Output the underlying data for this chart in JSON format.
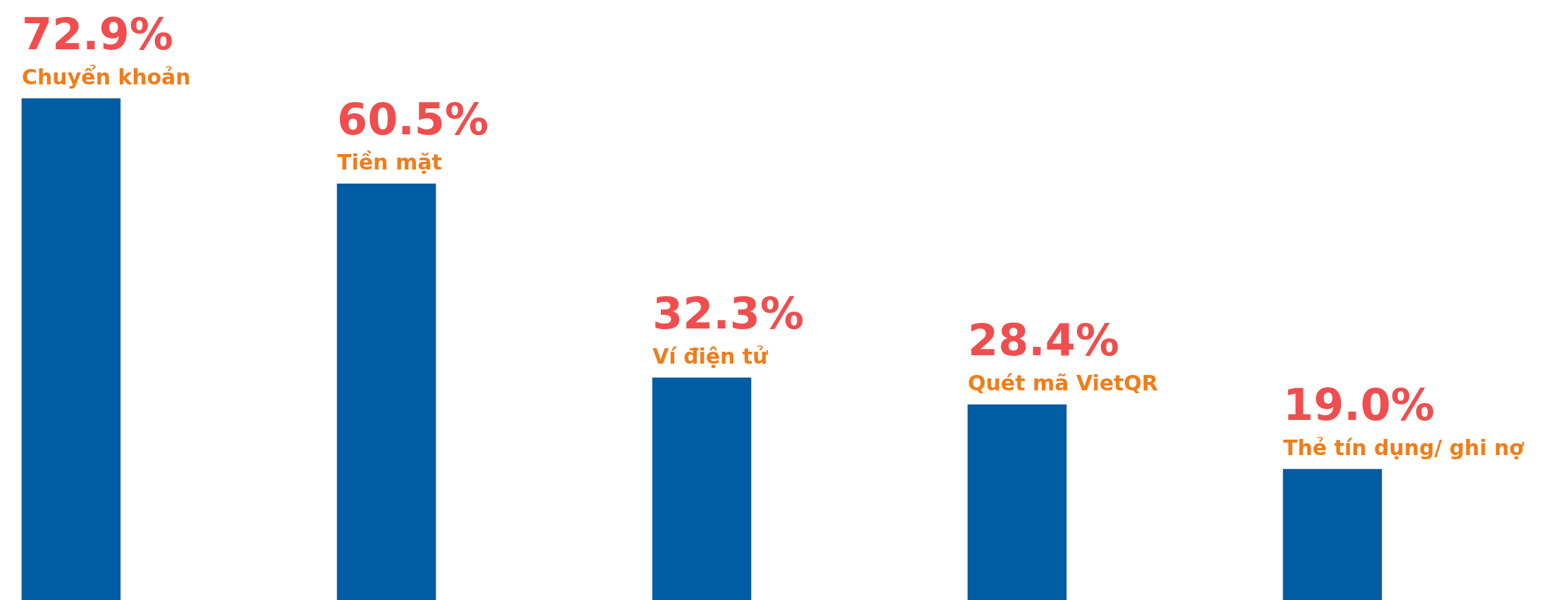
{
  "chart_data": {
    "type": "bar",
    "categories": [
      "Chuyển khoản",
      "Tiền mặt",
      "Ví điện tử",
      "Quét mã VietQR",
      "Thẻ tín dụng/ ghi nợ"
    ],
    "values": [
      72.9,
      60.5,
      32.3,
      28.4,
      19.0
    ],
    "value_labels": [
      "72.9%",
      "60.5%",
      "32.3%",
      "28.4%",
      "19.0%"
    ],
    "color": "#005ca3"
  }
}
